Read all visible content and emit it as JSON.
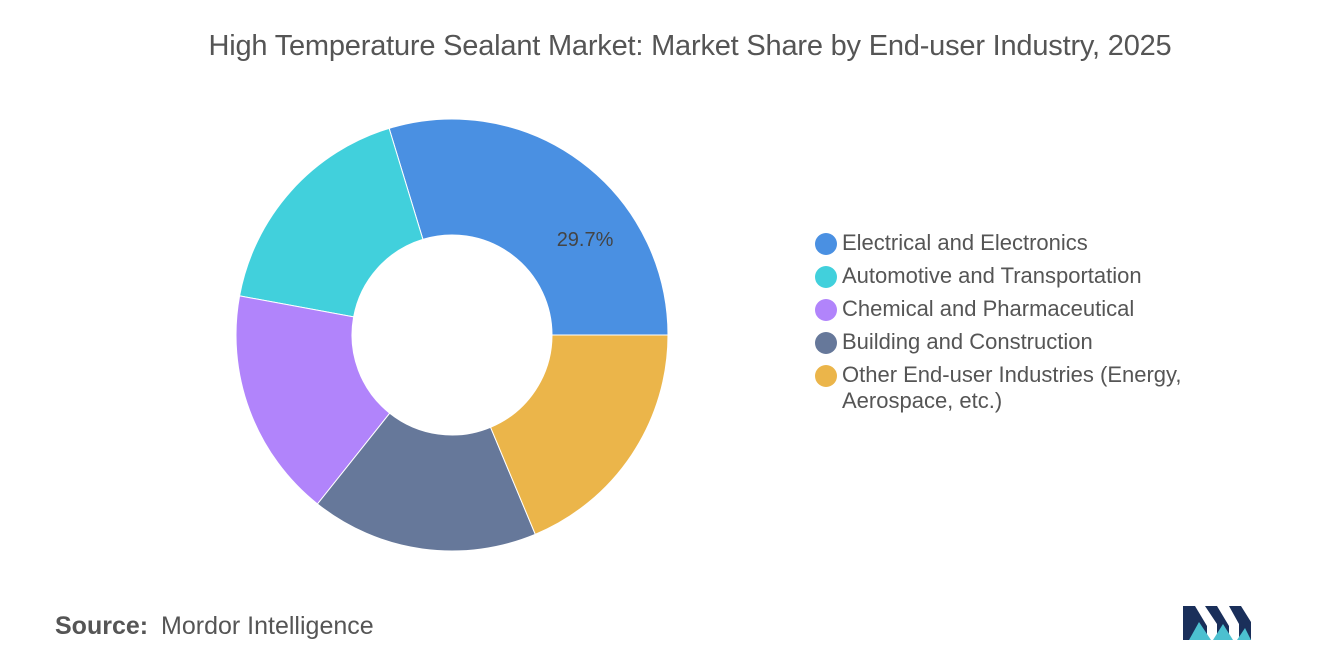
{
  "chart_data": {
    "type": "pie",
    "title": "High Temperature Sealant Market: Market Share by End-user Industry, 2025",
    "categories": [
      "Electrical and Electronics",
      "Automotive and Transportation",
      "Chemical and Pharmaceutical",
      "Building and Construction",
      "Other End-user Industries (Energy, Aerospace, etc.)"
    ],
    "values": [
      29.7,
      17.4,
      17.2,
      17.0,
      18.7
    ],
    "data_labels": [
      "29.7%",
      "",
      "",
      "",
      ""
    ],
    "colors": [
      "#4a90e2",
      "#41d0dc",
      "#b184fb",
      "#66789a",
      "#ebb54a"
    ],
    "hole": "donut",
    "legend_position": "right"
  },
  "legend": {
    "items": [
      "Electrical and Electronics",
      "Automotive and Transportation",
      "Chemical and Pharmaceutical",
      "Building and Construction",
      "Other End-user Industries (Energy, Aerospace, etc.)"
    ]
  },
  "source": {
    "label": "Source:",
    "text": "Mordor Intelligence"
  },
  "logo": {
    "icon": "mordor-intelligence-logo",
    "colors": [
      "#1a2f5a",
      "#4cc0d0"
    ]
  }
}
